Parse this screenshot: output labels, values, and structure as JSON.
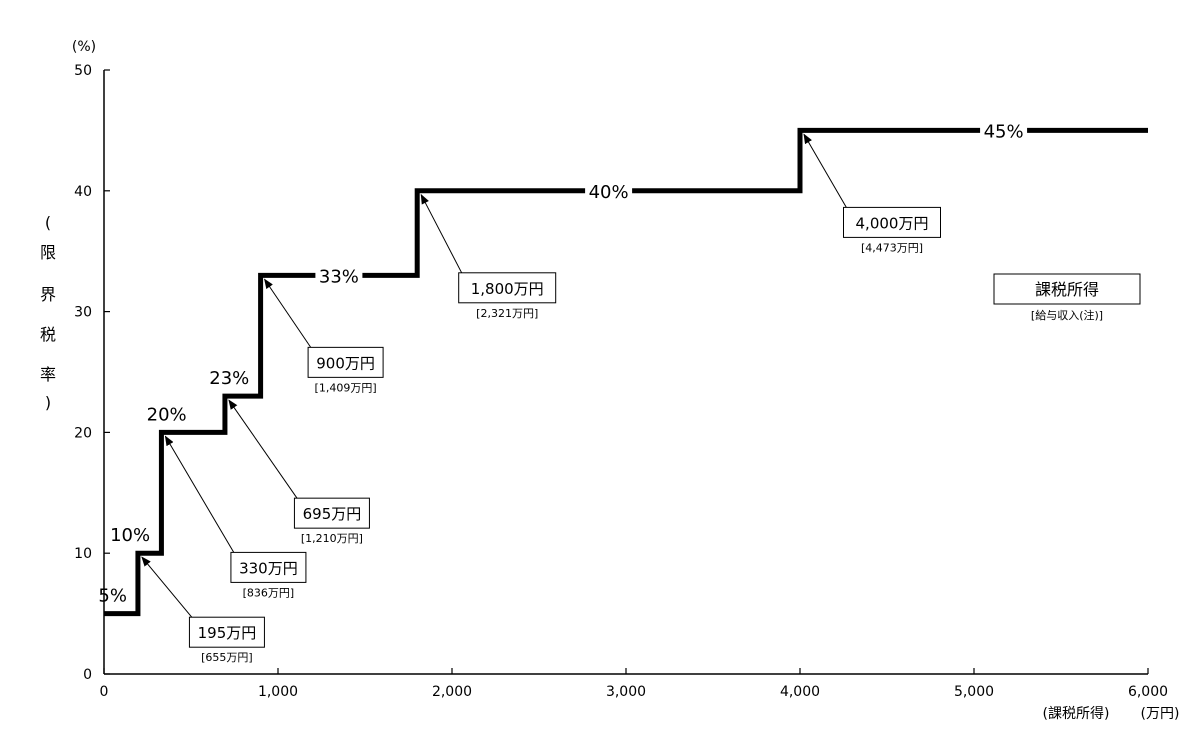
{
  "chart_data": {
    "type": "line",
    "step": true,
    "x_unit": "(万円)",
    "y_unit": "(%)",
    "xlabel": "(課税所得)",
    "ylabel": [
      "(",
      "限",
      "界",
      "税",
      "率",
      ")"
    ],
    "xlim": [
      0,
      6000
    ],
    "ylim": [
      0,
      50
    ],
    "x_ticks": [
      "0",
      "1,000",
      "2,000",
      "3,000",
      "4,000",
      "5,000",
      "6,000"
    ],
    "x_tick_values": [
      0,
      1000,
      2000,
      3000,
      4000,
      5000,
      6000
    ],
    "y_ticks": [
      "0",
      "10",
      "20",
      "30",
      "40",
      "50"
    ],
    "y_tick_values": [
      0,
      10,
      20,
      30,
      40,
      50
    ],
    "grid": false,
    "series": [
      {
        "x": [
          0,
          195,
          330,
          695,
          900,
          1800,
          4000,
          6000
        ],
        "y": [
          5,
          10,
          20,
          23,
          33,
          40,
          45,
          45
        ]
      }
    ],
    "rate_labels": [
      {
        "text": "5%",
        "x": 50,
        "y": 5
      },
      {
        "text": "10%",
        "x": 150,
        "y": 10
      },
      {
        "text": "20%",
        "x": 360,
        "y": 20
      },
      {
        "text": "23%",
        "x": 720,
        "y": 23
      },
      {
        "text": "33%",
        "x": 1350,
        "y": 33
      },
      {
        "text": "40%",
        "x": 2900,
        "y": 40
      },
      {
        "text": "45%",
        "x": 5170,
        "y": 45
      }
    ],
    "annotations": [
      {
        "label": "195万円",
        "sublabel": "[655万円]",
        "x": 195,
        "y": 10
      },
      {
        "label": "330万円",
        "sublabel": "[836万円]",
        "x": 330,
        "y": 20
      },
      {
        "label": "695万円",
        "sublabel": "[1,210万円]",
        "x": 695,
        "y": 23
      },
      {
        "label": "900万円",
        "sublabel": "[1,409万円]",
        "x": 900,
        "y": 33
      },
      {
        "label": "1,800万円",
        "sublabel": "[2,321万円]",
        "x": 1800,
        "y": 40
      },
      {
        "label": "4,000万円",
        "sublabel": "[4,473万円]",
        "x": 4000,
        "y": 45
      }
    ],
    "legend": {
      "label": "課税所得",
      "sublabel": "[給与収入(注)]",
      "placement": "right"
    },
    "colors": {
      "line": "#000000",
      "background": "#ffffff"
    }
  }
}
